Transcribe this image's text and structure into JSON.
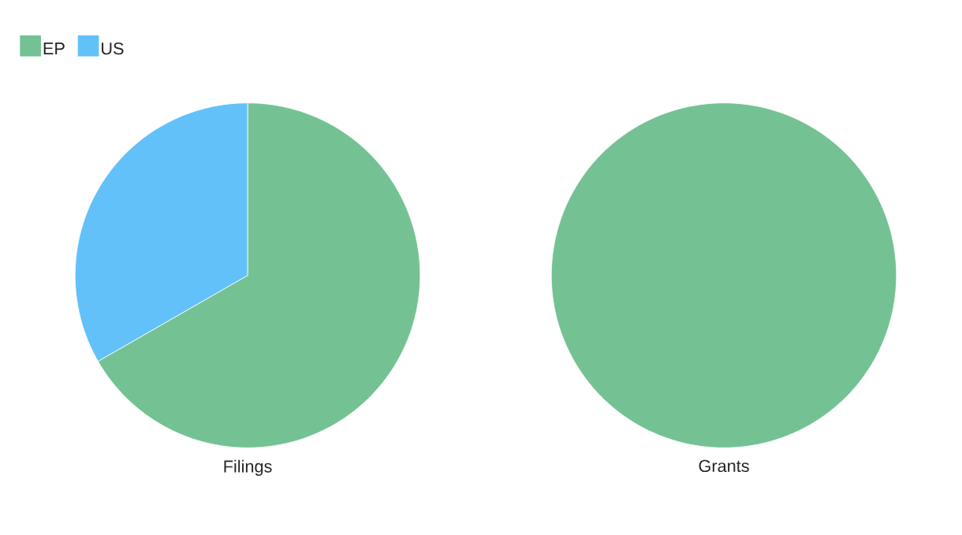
{
  "chart_data": {
    "type": "pie",
    "categories": [
      "EP",
      "US"
    ],
    "colors": [
      "#74c293",
      "#62c1f8"
    ],
    "legend": "top left",
    "series": [
      {
        "name": "Filings",
        "values": [
          66.7,
          33.3
        ]
      },
      {
        "name": "Grants",
        "values": [
          100,
          0
        ]
      }
    ]
  }
}
